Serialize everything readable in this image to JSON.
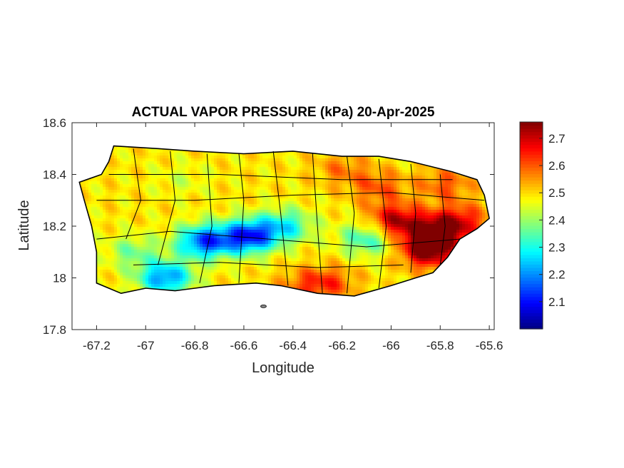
{
  "chart_data": {
    "type": "heatmap",
    "title": "ACTUAL VAPOR PRESSURE (kPa) 20-Apr-2025",
    "xlabel": "Longitude",
    "ylabel": "Latitude",
    "xlim": [
      -67.3,
      -65.58
    ],
    "ylim": [
      17.8,
      18.6
    ],
    "xticks": [
      -67.2,
      -67,
      -66.8,
      -66.6,
      -66.4,
      -66.2,
      -66,
      -65.8,
      -65.6
    ],
    "xtick_labels": [
      "-67.2",
      "-67",
      "-66.8",
      "-66.6",
      "-66.4",
      "-66.2",
      "-66",
      "-65.8",
      "-65.6"
    ],
    "yticks": [
      17.8,
      18,
      18.2,
      18.4,
      18.6
    ],
    "ytick_labels": [
      "17.8",
      "18",
      "18.2",
      "18.4",
      "18.6"
    ],
    "colorbar": {
      "colormap": "jet",
      "range": [
        2.0,
        2.76
      ],
      "ticks": [
        2.1,
        2.2,
        2.3,
        2.4,
        2.5,
        2.6,
        2.7
      ],
      "tick_labels": [
        "2.1",
        "2.2",
        "2.3",
        "2.4",
        "2.5",
        "2.6",
        "2.7"
      ]
    },
    "grid": false,
    "field": {
      "background_kPa": 2.49,
      "features": [
        {
          "lon": -65.82,
          "lat": 18.17,
          "value": 2.76
        },
        {
          "lon": -65.98,
          "lat": 18.22,
          "value": 2.72
        },
        {
          "lon": -65.85,
          "lat": 18.1,
          "value": 2.73
        },
        {
          "lon": -65.72,
          "lat": 18.22,
          "value": 2.66
        },
        {
          "lon": -66.05,
          "lat": 18.35,
          "value": 2.6
        },
        {
          "lon": -65.78,
          "lat": 18.36,
          "value": 2.6
        },
        {
          "lon": -66.2,
          "lat": 18.42,
          "value": 2.57
        },
        {
          "lon": -66.25,
          "lat": 17.98,
          "value": 2.6
        },
        {
          "lon": -66.35,
          "lat": 17.97,
          "value": 2.58
        },
        {
          "lon": -66.58,
          "lat": 18.16,
          "value": 2.12
        },
        {
          "lon": -66.76,
          "lat": 18.14,
          "value": 2.15
        },
        {
          "lon": -66.92,
          "lat": 18.0,
          "value": 2.2
        },
        {
          "lon": -66.43,
          "lat": 18.2,
          "value": 2.3
        },
        {
          "lon": -66.1,
          "lat": 18.15,
          "value": 2.32
        },
        {
          "lon": -67.05,
          "lat": 18.1,
          "value": 2.38
        },
        {
          "lon": -66.85,
          "lat": 18.38,
          "value": 2.45
        }
      ]
    },
    "region": "Puerto Rico (municipality boundaries)"
  },
  "colors": {
    "boundary": "#000000",
    "axes": "#262626",
    "ocean": "#ffffff"
  }
}
